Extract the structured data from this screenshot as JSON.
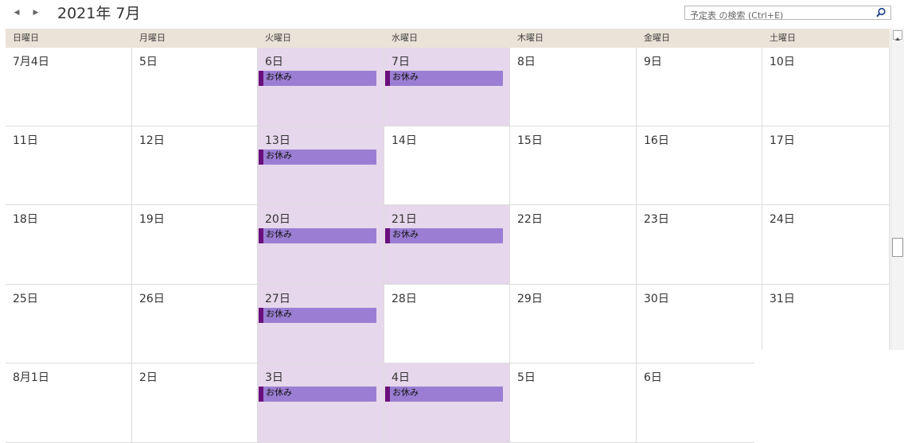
{
  "header": {
    "title": "2021年 7月",
    "prev_icon": "chevron-left-icon",
    "next_icon": "chevron-right-icon"
  },
  "search": {
    "placeholder": "予定表 の検索 (Ctrl+E)",
    "icon": "search-icon"
  },
  "weekdays": [
    "日曜日",
    "月曜日",
    "火曜日",
    "水曜日",
    "木曜日",
    "金曜日",
    "土曜日"
  ],
  "weeks": [
    {
      "days": [
        {
          "label": "7月4日",
          "event": null
        },
        {
          "label": "5日",
          "event": null
        },
        {
          "label": "6日",
          "event": "お休み"
        },
        {
          "label": "7日",
          "event": "お休み"
        },
        {
          "label": "8日",
          "event": null
        },
        {
          "label": "9日",
          "event": null
        },
        {
          "label": "10日",
          "event": null
        }
      ]
    },
    {
      "days": [
        {
          "label": "11日",
          "event": null
        },
        {
          "label": "12日",
          "event": null
        },
        {
          "label": "13日",
          "event": "お休み"
        },
        {
          "label": "14日",
          "event": null
        },
        {
          "label": "15日",
          "event": null
        },
        {
          "label": "16日",
          "event": null
        },
        {
          "label": "17日",
          "event": null
        }
      ]
    },
    {
      "days": [
        {
          "label": "18日",
          "event": null
        },
        {
          "label": "19日",
          "event": null
        },
        {
          "label": "20日",
          "event": "お休み"
        },
        {
          "label": "21日",
          "event": "お休み"
        },
        {
          "label": "22日",
          "event": null
        },
        {
          "label": "23日",
          "event": null
        },
        {
          "label": "24日",
          "event": null
        }
      ]
    },
    {
      "days": [
        {
          "label": "25日",
          "event": null
        },
        {
          "label": "26日",
          "event": null
        },
        {
          "label": "27日",
          "event": "お休み"
        },
        {
          "label": "28日",
          "event": null
        },
        {
          "label": "29日",
          "event": null
        },
        {
          "label": "30日",
          "event": null
        },
        {
          "label": "31日",
          "event": null
        }
      ]
    },
    {
      "days": [
        {
          "label": "8月1日",
          "event": null
        },
        {
          "label": "2日",
          "event": null
        },
        {
          "label": "3日",
          "event": "お休み"
        },
        {
          "label": "4日",
          "event": "お休み"
        },
        {
          "label": "5日",
          "event": null
        },
        {
          "label": "6日",
          "event": null
        },
        {
          "label": "",
          "event": null
        }
      ]
    }
  ],
  "colors": {
    "weekday_header_bg": "#eae3d7",
    "event_bg": "#9b7ed3",
    "event_border": "#6a0f7c",
    "holiday_cell_bg": "#e6d7ec"
  }
}
